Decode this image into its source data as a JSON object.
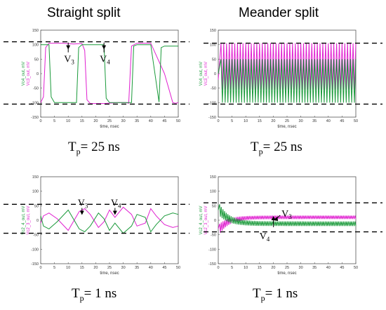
{
  "headers": {
    "left": "Straight split",
    "right": "Meander split"
  },
  "colors": {
    "green": "#1a9a3a",
    "magenta": "#e020d0",
    "dash": "#000000",
    "frame": "#555555"
  },
  "chart_data": [
    {
      "type": "line",
      "id": "tl",
      "caption": {
        "main": "T",
        "sub": "p",
        "rest": "= 25 ns"
      },
      "xlabel": "time, nsec",
      "ylabel_green": "Vc4_out, mV",
      "ylabel_magenta": "Vc3_out, mV",
      "xlim": [
        0,
        50
      ],
      "ylim": [
        -150,
        150
      ],
      "xticks": [
        "0",
        "5",
        "10",
        "15",
        "20",
        "25",
        "30",
        "35",
        "40",
        "45",
        "50"
      ],
      "yticks": [
        "150",
        "100",
        "50",
        "0",
        "-50",
        "-100",
        "-150"
      ],
      "dashed_levels": [
        110,
        -105
      ],
      "series": [
        {
          "label": "V3",
          "color": "magenta",
          "x": [
            0,
            1,
            1.8,
            3,
            8,
            12,
            15,
            16,
            16.8,
            18,
            23,
            28,
            31,
            32,
            33,
            35,
            40,
            45,
            48,
            49,
            50
          ],
          "y": [
            -100,
            -80,
            90,
            105,
            105,
            102,
            104,
            80,
            -90,
            -103,
            -103,
            -100,
            -100,
            -102,
            95,
            105,
            105,
            0,
            -100,
            -102,
            -100
          ]
        },
        {
          "label": "V4",
          "color": "green",
          "x": [
            0,
            3,
            3.8,
            5,
            10,
            13,
            13.8,
            15,
            20,
            23,
            23.8,
            25,
            30,
            33,
            33.8,
            35,
            40,
            43,
            43.8,
            45,
            50
          ],
          "y": [
            100,
            100,
            -80,
            -100,
            -100,
            -100,
            90,
            100,
            100,
            100,
            -85,
            -100,
            -100,
            -100,
            95,
            100,
            100,
            -98,
            90,
            95,
            95
          ]
        }
      ],
      "annotations": [
        {
          "label": "V",
          "sub": "3",
          "x": 10,
          "y": 100
        },
        {
          "label": "V",
          "sub": "4",
          "x": 23,
          "y": 100
        }
      ]
    },
    {
      "type": "line",
      "id": "tr",
      "caption": {
        "main": "T",
        "sub": "p",
        "rest": "= 25 ns"
      },
      "xlabel": "time, nsec",
      "ylabel_green": "Vc4_out, mV",
      "ylabel_magenta": "Vc3_out, mV",
      "xlim": [
        0,
        50
      ],
      "ylim": [
        -150,
        150
      ],
      "xticks": [
        "0",
        "5",
        "10",
        "15",
        "20",
        "25",
        "30",
        "35",
        "40",
        "45",
        "50"
      ],
      "yticks": [
        "150",
        "100",
        "50",
        "0",
        "-50",
        "-100",
        "-150"
      ],
      "dashed_levels": [
        105,
        -105
      ],
      "series": [
        {
          "label": "V3",
          "color": "magenta",
          "period": 1,
          "center": 25,
          "amp": 80,
          "start": 1,
          "y_start": -20
        },
        {
          "label": "V4",
          "color": "green",
          "period": 1,
          "center": -25,
          "amp": 75,
          "start": 1,
          "y_start": 0
        }
      ],
      "annotations": []
    },
    {
      "type": "line",
      "id": "bl",
      "caption": {
        "main": "T",
        "sub": "p",
        "rest": "= 1 ns"
      },
      "xlabel": "time, nsec",
      "ylabel_green": "Vc2_4_out, mV",
      "ylabel_magenta": "Vc2_3_out, mV",
      "xlim": [
        0,
        50
      ],
      "ylim": [
        -150,
        150
      ],
      "xticks": [
        "0",
        "5",
        "10",
        "15",
        "20",
        "25",
        "30",
        "35",
        "40",
        "45",
        "50"
      ],
      "yticks": [
        "150",
        "100",
        "50",
        "0",
        "-50",
        "-100",
        "-150"
      ],
      "dashed_levels": [
        55,
        -45
      ],
      "series": [
        {
          "label": "V3",
          "color": "magenta",
          "x": [
            0,
            1,
            3,
            6,
            10,
            14,
            16,
            18,
            21,
            23,
            25,
            27,
            30,
            33,
            35,
            38,
            40,
            42,
            45,
            48,
            50
          ],
          "y": [
            -10,
            15,
            25,
            5,
            -35,
            30,
            40,
            20,
            -25,
            -5,
            35,
            10,
            45,
            20,
            -20,
            -10,
            40,
            15,
            -15,
            -25,
            -20
          ]
        },
        {
          "label": "V4",
          "color": "green",
          "x": [
            0,
            1,
            3,
            6,
            10,
            14,
            16,
            18,
            21,
            23,
            25,
            27,
            30,
            33,
            35,
            38,
            40,
            42,
            45,
            48,
            50
          ],
          "y": [
            15,
            -20,
            -30,
            -5,
            35,
            -30,
            -40,
            -20,
            25,
            5,
            -35,
            -10,
            -45,
            -20,
            20,
            10,
            -40,
            -15,
            15,
            25,
            20
          ]
        }
      ],
      "annotations": [
        {
          "label": "V",
          "sub": "3",
          "x": 15,
          "y": 35
        },
        {
          "label": "V",
          "sub": "4",
          "x": 27,
          "y": 35
        }
      ]
    },
    {
      "type": "line",
      "id": "br",
      "caption": {
        "main": "T",
        "sub": "p",
        "rest": "= 1 ns"
      },
      "xlabel": "time, nsec",
      "ylabel_green": "Vc2_4_out, mV",
      "ylabel_magenta": "Vc2_3_out, mV",
      "xlim": [
        0,
        50
      ],
      "ylim": [
        -150,
        150
      ],
      "xticks": [
        "0",
        "5",
        "10",
        "15",
        "20",
        "25",
        "30",
        "35",
        "40",
        "45",
        "50"
      ],
      "yticks": [
        "150",
        "100",
        "50",
        "0",
        "-50",
        "-100",
        "-150"
      ],
      "dashed_levels": [
        60,
        -40
      ],
      "series": [
        {
          "label": "V3",
          "color": "magenta",
          "period": 0.6,
          "center": 10,
          "amp": 6,
          "start": 0.5,
          "y_start": -30
        },
        {
          "label": "V4",
          "color": "green",
          "period": 0.6,
          "center": -12,
          "amp": 8,
          "start": 0.5,
          "y_start": 35
        }
      ],
      "annotations": [
        {
          "label": "V",
          "sub": "3",
          "x": 23,
          "y": 12
        },
        {
          "label": "V",
          "sub": "4",
          "x": 17,
          "y": -12
        }
      ]
    }
  ]
}
